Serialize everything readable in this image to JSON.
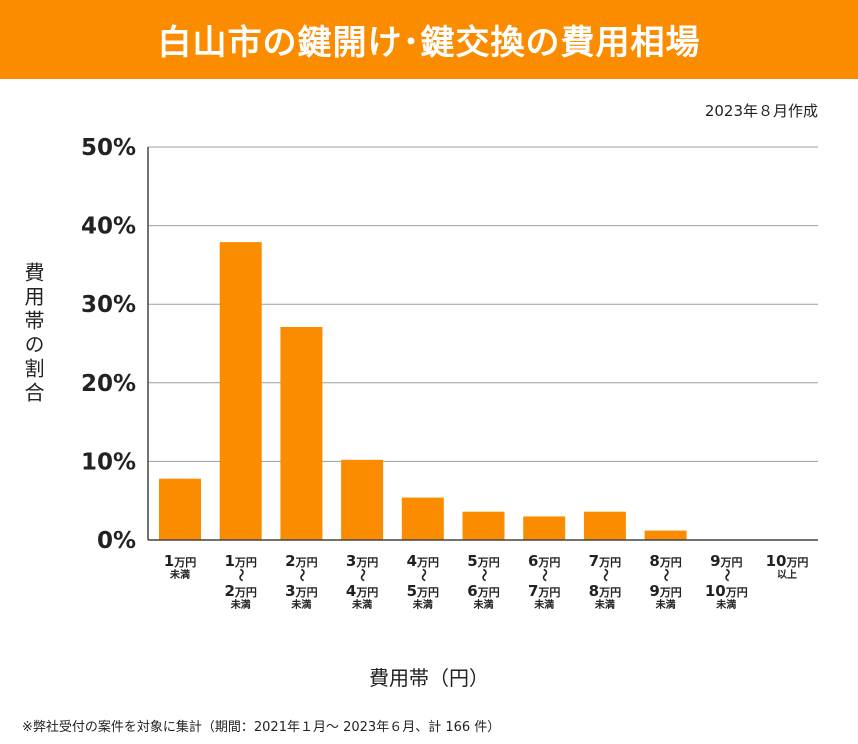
{
  "colors": {
    "accent": "#fb8c00",
    "bar": "#fb8c00",
    "grid": "#9e9e9e"
  },
  "header": {
    "title": "白山市の鍵開け･鍵交換の費用相場"
  },
  "note": {
    "date": "2023年８月作成"
  },
  "footnote": "※弊社受付の案件を対象に集計（期間：2021年１月～ 2023年６月、計 166 件）",
  "chart_data": {
    "type": "bar",
    "title": "白山市の鍵開け･鍵交換の費用相場",
    "xlabel": "費用帯（円）",
    "ylabel": "費用帯の割合",
    "ylim": [
      0,
      50
    ],
    "yticks": [
      0,
      10,
      20,
      30,
      40,
      50
    ],
    "ytick_labels": [
      "0%",
      "10%",
      "20%",
      "30%",
      "40%",
      "50%"
    ],
    "grid": true,
    "categories": [
      "1万円未満",
      "1万円〜2万円未満",
      "2万円〜3万円未満",
      "3万円〜4万円未満",
      "4万円〜5万円未満",
      "5万円〜6万円未満",
      "6万円〜7万円未満",
      "7万円〜8万円未満",
      "8万円〜9万円未満",
      "9万円〜10万円未満",
      "10万円以上"
    ],
    "category_labels": [
      [
        {
          "n": "1",
          "u": "万円"
        },
        {
          "s": "未満"
        }
      ],
      [
        {
          "n": "1",
          "u": "万円"
        },
        {
          "w": "〜"
        },
        {
          "n": "2",
          "u": "万円"
        },
        {
          "s": "未満"
        }
      ],
      [
        {
          "n": "2",
          "u": "万円"
        },
        {
          "w": "〜"
        },
        {
          "n": "3",
          "u": "万円"
        },
        {
          "s": "未満"
        }
      ],
      [
        {
          "n": "3",
          "u": "万円"
        },
        {
          "w": "〜"
        },
        {
          "n": "4",
          "u": "万円"
        },
        {
          "s": "未満"
        }
      ],
      [
        {
          "n": "4",
          "u": "万円"
        },
        {
          "w": "〜"
        },
        {
          "n": "5",
          "u": "万円"
        },
        {
          "s": "未満"
        }
      ],
      [
        {
          "n": "5",
          "u": "万円"
        },
        {
          "w": "〜"
        },
        {
          "n": "6",
          "u": "万円"
        },
        {
          "s": "未満"
        }
      ],
      [
        {
          "n": "6",
          "u": "万円"
        },
        {
          "w": "〜"
        },
        {
          "n": "7",
          "u": "万円"
        },
        {
          "s": "未満"
        }
      ],
      [
        {
          "n": "7",
          "u": "万円"
        },
        {
          "w": "〜"
        },
        {
          "n": "8",
          "u": "万円"
        },
        {
          "s": "未満"
        }
      ],
      [
        {
          "n": "8",
          "u": "万円"
        },
        {
          "w": "〜"
        },
        {
          "n": "9",
          "u": "万円"
        },
        {
          "s": "未満"
        }
      ],
      [
        {
          "n": "9",
          "u": "万円"
        },
        {
          "w": "〜"
        },
        {
          "n": "10",
          "u": "万円"
        },
        {
          "s": "未満"
        }
      ],
      [
        {
          "n": "10",
          "u": "万円"
        },
        {
          "s": "以上"
        }
      ]
    ],
    "values": [
      7.8,
      37.9,
      27.1,
      10.2,
      5.4,
      3.6,
      3.0,
      3.6,
      1.2,
      0,
      0
    ]
  }
}
